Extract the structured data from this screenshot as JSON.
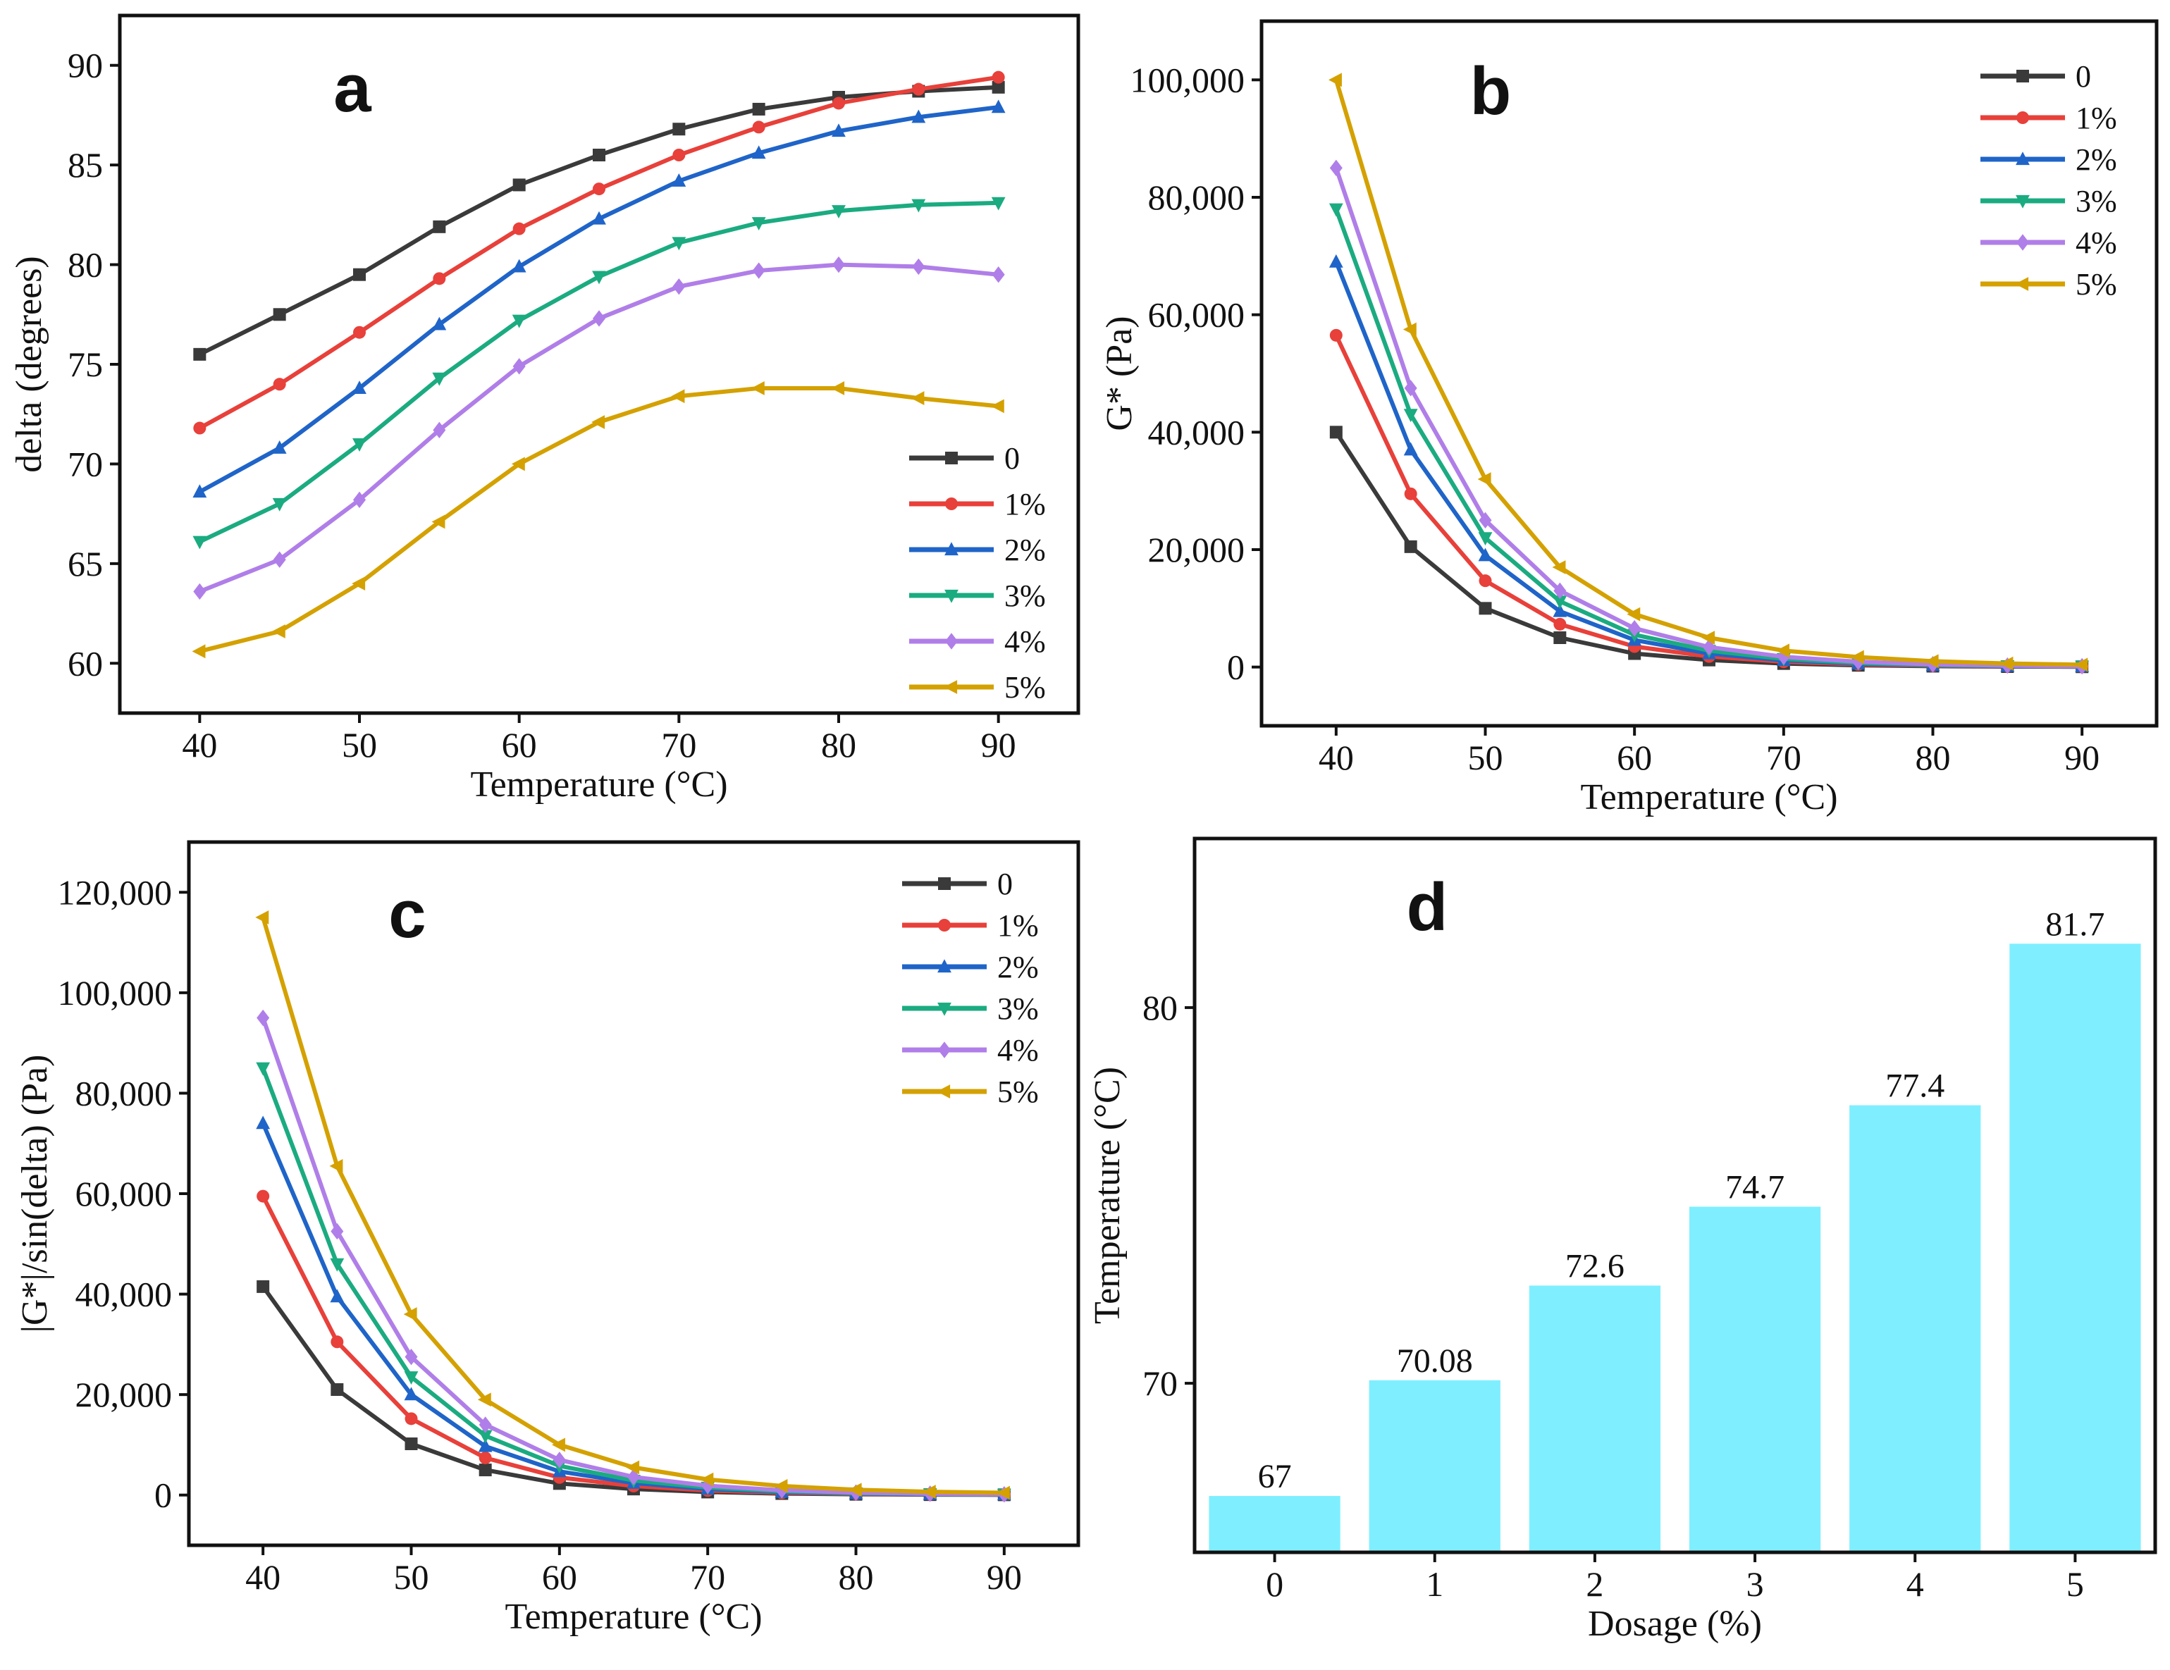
{
  "chart_data": [
    {
      "type": "line",
      "panel_label": "a",
      "xlabel": "Temperature (°C)",
      "ylabel": "delta (degrees)",
      "xlim": [
        35,
        95
      ],
      "ylim": [
        57.5,
        92.5
      ],
      "xticks": [
        40,
        50,
        60,
        70,
        80,
        90
      ],
      "xtick_labels": [
        "40",
        "50",
        "60",
        "70",
        "80",
        "90"
      ],
      "yticks": [
        60,
        65,
        70,
        75,
        80,
        85,
        90
      ],
      "ytick_labels": [
        "60",
        "65",
        "70",
        "75",
        "80",
        "85",
        "90"
      ],
      "legend_position": "bottom-right",
      "x": [
        40,
        45,
        50,
        55,
        60,
        65,
        70,
        75,
        80,
        85,
        90
      ],
      "series": [
        {
          "name": "0",
          "color": "#3a3a3a",
          "marker": "square",
          "values": [
            75.5,
            77.5,
            79.5,
            81.9,
            84.0,
            85.5,
            86.8,
            87.8,
            88.4,
            88.7,
            88.9
          ]
        },
        {
          "name": "1%",
          "color": "#e8403a",
          "marker": "circle",
          "values": [
            71.8,
            74.0,
            76.6,
            79.3,
            81.8,
            83.8,
            85.5,
            86.9,
            88.1,
            88.8,
            89.4
          ]
        },
        {
          "name": "2%",
          "color": "#1f64c8",
          "marker": "triangle-up",
          "values": [
            68.6,
            70.8,
            73.8,
            77.0,
            79.9,
            82.3,
            84.2,
            85.6,
            86.7,
            87.4,
            87.9
          ]
        },
        {
          "name": "3%",
          "color": "#1bab80",
          "marker": "triangle-down",
          "values": [
            66.1,
            68.0,
            71.0,
            74.3,
            77.2,
            79.4,
            81.1,
            82.1,
            82.7,
            83.0,
            83.1
          ]
        },
        {
          "name": "4%",
          "color": "#b07ee8",
          "marker": "diamond",
          "values": [
            63.6,
            65.2,
            68.2,
            71.7,
            74.9,
            77.3,
            78.9,
            79.7,
            80.0,
            79.9,
            79.5
          ]
        },
        {
          "name": "5%",
          "color": "#d4a100",
          "marker": "triangle-left",
          "values": [
            60.6,
            61.6,
            64.0,
            67.1,
            70.0,
            72.1,
            73.4,
            73.8,
            73.8,
            73.3,
            72.9
          ]
        }
      ]
    },
    {
      "type": "line",
      "panel_label": "b",
      "xlabel": "Temperature (°C)",
      "ylabel": "G* (Pa)",
      "xlim": [
        35,
        95
      ],
      "ylim": [
        -10000,
        110000
      ],
      "xticks": [
        40,
        50,
        60,
        70,
        80,
        90
      ],
      "xtick_labels": [
        "40",
        "50",
        "60",
        "70",
        "80",
        "90"
      ],
      "yticks": [
        0,
        20000,
        40000,
        60000,
        80000,
        100000
      ],
      "ytick_labels": [
        "0",
        "20,000",
        "40,000",
        "60,000",
        "80,000",
        "100,000"
      ],
      "legend_position": "top-right",
      "x": [
        40,
        45,
        50,
        55,
        60,
        65,
        70,
        75,
        80,
        85,
        90
      ],
      "series": [
        {
          "name": "0",
          "color": "#3a3a3a",
          "marker": "square",
          "values": [
            40000,
            20500,
            10000,
            5000,
            2300,
            1200,
            600,
            300,
            150,
            80,
            50
          ]
        },
        {
          "name": "1%",
          "color": "#e8403a",
          "marker": "circle",
          "values": [
            56500,
            29500,
            14700,
            7300,
            3500,
            1800,
            900,
            450,
            230,
            120,
            70
          ]
        },
        {
          "name": "2%",
          "color": "#1f64c8",
          "marker": "triangle-up",
          "values": [
            69000,
            37000,
            19000,
            9500,
            4600,
            2300,
            1150,
            580,
            300,
            160,
            90
          ]
        },
        {
          "name": "3%",
          "color": "#1bab80",
          "marker": "triangle-down",
          "values": [
            78000,
            43000,
            22000,
            11200,
            5500,
            2800,
            1400,
            700,
            360,
            190,
            110
          ]
        },
        {
          "name": "4%",
          "color": "#b07ee8",
          "marker": "diamond",
          "values": [
            85000,
            47500,
            25000,
            13000,
            6600,
            3400,
            1750,
            900,
            470,
            250,
            140
          ]
        },
        {
          "name": "5%",
          "color": "#d4a100",
          "marker": "triangle-left",
          "values": [
            100000,
            57500,
            32000,
            17000,
            9000,
            5000,
            2800,
            1700,
            1000,
            600,
            400
          ]
        }
      ]
    },
    {
      "type": "line",
      "panel_label": "c",
      "xlabel": "Temperature (°C)",
      "ylabel": "|G*|/sin(delta) (Pa)",
      "xlim": [
        35,
        95
      ],
      "ylim": [
        -10000,
        130000
      ],
      "xticks": [
        40,
        50,
        60,
        70,
        80,
        90
      ],
      "xtick_labels": [
        "40",
        "50",
        "60",
        "70",
        "80",
        "90"
      ],
      "yticks": [
        0,
        20000,
        40000,
        60000,
        80000,
        100000,
        120000
      ],
      "ytick_labels": [
        "0",
        "20,000",
        "40,000",
        "60,000",
        "80,000",
        "100,000",
        "120,000"
      ],
      "legend_position": "top-right",
      "x": [
        40,
        45,
        50,
        55,
        60,
        65,
        70,
        75,
        80,
        85,
        90
      ],
      "series": [
        {
          "name": "0",
          "color": "#3a3a3a",
          "marker": "square",
          "values": [
            41500,
            21000,
            10200,
            5000,
            2300,
            1200,
            600,
            300,
            150,
            80,
            50
          ]
        },
        {
          "name": "1%",
          "color": "#e8403a",
          "marker": "circle",
          "values": [
            59500,
            30500,
            15200,
            7400,
            3500,
            1800,
            900,
            450,
            230,
            120,
            70
          ]
        },
        {
          "name": "2%",
          "color": "#1f64c8",
          "marker": "triangle-up",
          "values": [
            74000,
            39500,
            20000,
            9700,
            4700,
            2400,
            1200,
            600,
            310,
            160,
            90
          ]
        },
        {
          "name": "3%",
          "color": "#1bab80",
          "marker": "triangle-down",
          "values": [
            85000,
            46000,
            23500,
            11800,
            5800,
            2900,
            1500,
            750,
            380,
            200,
            110
          ]
        },
        {
          "name": "4%",
          "color": "#b07ee8",
          "marker": "diamond",
          "values": [
            95000,
            52500,
            27500,
            14000,
            7000,
            3600,
            1850,
            950,
            490,
            260,
            150
          ]
        },
        {
          "name": "5%",
          "color": "#d4a100",
          "marker": "triangle-left",
          "values": [
            115000,
            65500,
            36000,
            19000,
            10000,
            5500,
            3100,
            1800,
            1050,
            650,
            450
          ]
        }
      ]
    },
    {
      "type": "bar",
      "panel_label": "d",
      "xlabel": "Dosage (%)",
      "ylabel": "Temperature (°C)",
      "ylim": [
        65.5,
        84.5
      ],
      "yticks": [
        70,
        80
      ],
      "ytick_labels": [
        "70",
        "80"
      ],
      "categories": [
        "0",
        "1",
        "2",
        "3",
        "4",
        "5"
      ],
      "values": [
        67,
        70.08,
        72.6,
        74.7,
        77.4,
        81.7
      ],
      "value_labels": [
        "67",
        "70.08",
        "72.6",
        "74.7",
        "77.4",
        "81.7"
      ],
      "color": "#7fefff"
    }
  ]
}
